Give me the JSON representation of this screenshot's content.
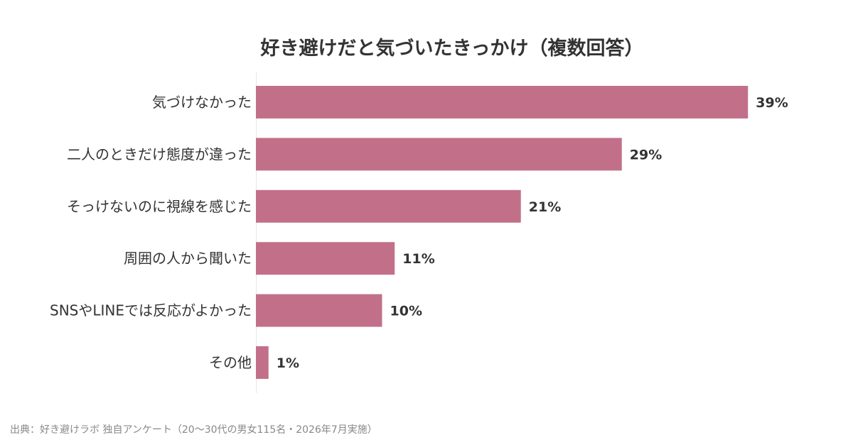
{
  "chart_data": {
    "type": "bar",
    "orientation": "horizontal",
    "title": "好き避けだと気づいたきっかけ（複数回答）",
    "categories": [
      "気づけなかった",
      "二人のときだけ態度が違った",
      "そっけないのに視線を感じた",
      "周囲の人から聞いた",
      "SNSやLINEでは反応がよかった",
      "その他"
    ],
    "values": [
      39,
      29,
      21,
      11,
      10,
      1
    ],
    "value_labels": [
      "39%",
      "29%",
      "21%",
      "11%",
      "10%",
      "1%"
    ],
    "xlim": [
      0,
      40
    ],
    "grid": false,
    "bar_color": "#c2708a"
  },
  "footer": {
    "source": "出典：好き避けラボ 独自アンケート（20〜30代の男女115名・2026年7月実施）"
  }
}
